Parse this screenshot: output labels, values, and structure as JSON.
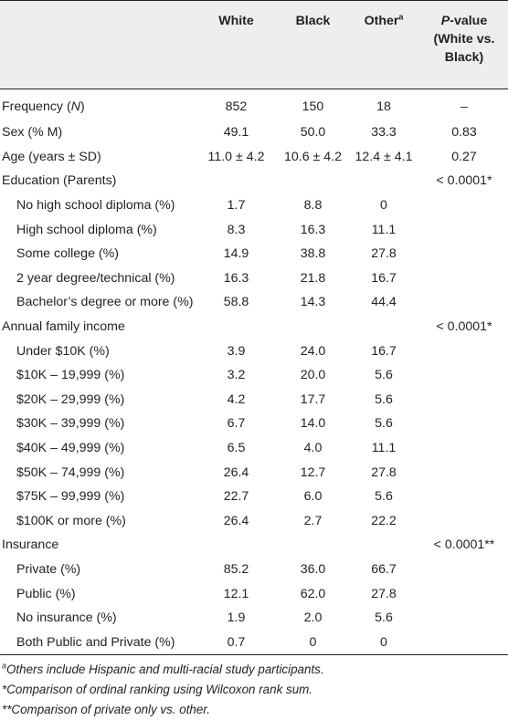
{
  "header": {
    "col_white": "White",
    "col_black": "Black",
    "col_other": "Other",
    "col_other_sup": "a",
    "col_pvalue_italic": "P",
    "col_pvalue_rest1": "-value",
    "col_pvalue_rest2": "(White vs.",
    "col_pvalue_rest3": "Black)"
  },
  "rows": [
    {
      "label": "Frequency (N)",
      "white": "852",
      "black": "150",
      "other": "18",
      "p": "–",
      "sub": false
    },
    {
      "label": "Sex (% M)",
      "white": "49.1",
      "black": "50.0",
      "other": "33.3",
      "p": "0.83",
      "sub": false
    },
    {
      "label": "Age (years ± SD)",
      "white": "11.0 ± 4.2",
      "black": "10.6 ± 4.2",
      "other": "12.4 ± 4.1",
      "p": "0.27",
      "sub": false
    },
    {
      "label": "Education (Parents)",
      "white": "",
      "black": "",
      "other": "",
      "p": "< 0.0001*",
      "sub": false
    },
    {
      "label": "No high school diploma (%)",
      "white": "1.7",
      "black": "8.8",
      "other": "0",
      "p": "",
      "sub": true
    },
    {
      "label": "High school diploma (%)",
      "white": "8.3",
      "black": "16.3",
      "other": "11.1",
      "p": "",
      "sub": true
    },
    {
      "label": "Some college (%)",
      "white": "14.9",
      "black": "38.8",
      "other": "27.8",
      "p": "",
      "sub": true
    },
    {
      "label": "2 year degree/technical (%)",
      "white": "16.3",
      "black": "21.8",
      "other": "16.7",
      "p": "",
      "sub": true
    },
    {
      "label": "Bachelor’s degree or more (%)",
      "white": "58.8",
      "black": "14.3",
      "other": "44.4",
      "p": "",
      "sub": true
    },
    {
      "label": "Annual family income",
      "white": "",
      "black": "",
      "other": "",
      "p": "< 0.0001*",
      "sub": false
    },
    {
      "label": "Under $10K (%)",
      "white": "3.9",
      "black": "24.0",
      "other": "16.7",
      "p": "",
      "sub": true
    },
    {
      "label": "$10K – 19,999 (%)",
      "white": "3.2",
      "black": "20.0",
      "other": "5.6",
      "p": "",
      "sub": true
    },
    {
      "label": "$20K – 29,999 (%)",
      "white": "4.2",
      "black": "17.7",
      "other": "5.6",
      "p": "",
      "sub": true
    },
    {
      "label": "$30K – 39,999 (%)",
      "white": "6.7",
      "black": "14.0",
      "other": "5.6",
      "p": "",
      "sub": true
    },
    {
      "label": "$40K – 49,999 (%)",
      "white": "6.5",
      "black": "4.0",
      "other": "11.1",
      "p": "",
      "sub": true
    },
    {
      "label": "$50K – 74,999 (%)",
      "white": "26.4",
      "black": "12.7",
      "other": "27.8",
      "p": "",
      "sub": true
    },
    {
      "label": "$75K – 99,999 (%)",
      "white": "22.7",
      "black": "6.0",
      "other": "5.6",
      "p": "",
      "sub": true
    },
    {
      "label": "$100K or more (%)",
      "white": "26.4",
      "black": "2.7",
      "other": "22.2",
      "p": "",
      "sub": true
    },
    {
      "label": "Insurance",
      "white": "",
      "black": "",
      "other": "",
      "p": "< 0.0001**",
      "sub": false
    },
    {
      "label": "Private (%)",
      "white": "85.2",
      "black": "36.0",
      "other": "66.7",
      "p": "",
      "sub": true
    },
    {
      "label": "Public (%)",
      "white": "12.1",
      "black": "62.0",
      "other": "27.8",
      "p": "",
      "sub": true
    },
    {
      "label": "No insurance (%)",
      "white": "1.9",
      "black": "2.0",
      "other": "5.6",
      "p": "",
      "sub": true
    },
    {
      "label": "Both Public and Private (%)",
      "white": "0.7",
      "black": "0",
      "other": "0",
      "p": "",
      "sub": true
    }
  ],
  "footnotes": {
    "a_sup": "a",
    "a_text": "Others include Hispanic and multi-racial study participants.",
    "star": "*Comparison of ordinal ranking using Wilcoxon rank sum.",
    "double_star": "**Comparison of private only vs. other."
  }
}
